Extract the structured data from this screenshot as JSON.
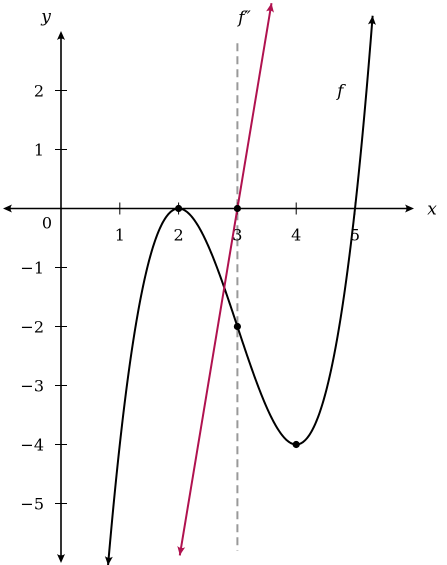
{
  "chart_data": {
    "type": "line",
    "xlabel": "x",
    "ylabel": "y",
    "xlim": [
      -1.0,
      6.0
    ],
    "ylim": [
      -5.9,
      3.0
    ],
    "origin_label": "0",
    "x_ticks": [
      1,
      2,
      3,
      4,
      5
    ],
    "x_tick_labels": [
      "1",
      "2",
      "3",
      "4",
      "5"
    ],
    "y_ticks": [
      2,
      1,
      -1,
      -2,
      -3,
      -4,
      -5
    ],
    "y_tick_labels": [
      "2",
      "1",
      "−1",
      "−2",
      "−3",
      "−4",
      "−5"
    ],
    "series": [
      {
        "name": "f",
        "color": "#000000",
        "formula": "(x-2)^2 (x-5)",
        "x_range": [
          0.8,
          5.3
        ],
        "label_pos": [
          4.75,
          2.0
        ]
      },
      {
        "name": "f″",
        "color": "#b0124f",
        "formula": "6x - 18",
        "x_range": [
          2.02,
          3.58
        ],
        "label_pos": [
          3.12,
          3.25
        ]
      }
    ],
    "points": [
      {
        "x": 2,
        "y": 0
      },
      {
        "x": 3,
        "y": 0
      },
      {
        "x": 3,
        "y": -2
      },
      {
        "x": 4,
        "y": -4
      }
    ],
    "vertical_dashed_line": {
      "x": 3,
      "y_range": [
        -5.8,
        2.8
      ],
      "color": "#999999"
    }
  }
}
